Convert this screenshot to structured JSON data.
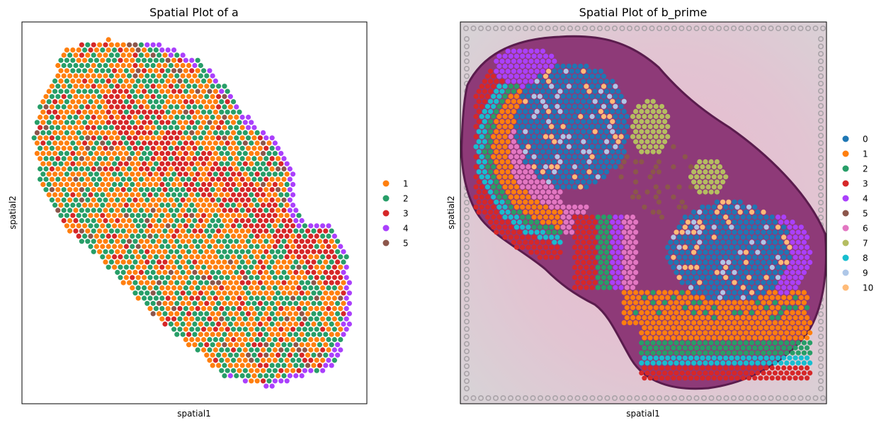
{
  "chart_data": [
    {
      "type": "scatter",
      "title": "Spatial Plot of a",
      "xlabel": "spatial1",
      "ylabel": "spatial2",
      "ticks": "none",
      "background": "white",
      "legend_placement": "right",
      "legend": [
        {
          "label": "1",
          "color": "#ff7f0e"
        },
        {
          "label": "2",
          "color": "#279e68"
        },
        {
          "label": "3",
          "color": "#d62728"
        },
        {
          "label": "4",
          "color": "#aa40fc"
        },
        {
          "label": "5",
          "color": "#8c564b"
        }
      ]
    },
    {
      "type": "scatter",
      "title": "Spatial Plot of b_prime",
      "xlabel": "spatial1",
      "ylabel": "spatial2",
      "ticks": "none",
      "background": "H&E tissue image",
      "legend_placement": "right",
      "legend": [
        {
          "label": "0",
          "color": "#1f77b4"
        },
        {
          "label": "1",
          "color": "#ff7f0e"
        },
        {
          "label": "2",
          "color": "#279e68"
        },
        {
          "label": "3",
          "color": "#d62728"
        },
        {
          "label": "4",
          "color": "#aa40fc"
        },
        {
          "label": "5",
          "color": "#8c564b"
        },
        {
          "label": "6",
          "color": "#e377c2"
        },
        {
          "label": "7",
          "color": "#b5bd61"
        },
        {
          "label": "8",
          "color": "#17becf"
        },
        {
          "label": "9",
          "color": "#aec7e8"
        },
        {
          "label": "10",
          "color": "#ffbb78"
        }
      ]
    }
  ]
}
